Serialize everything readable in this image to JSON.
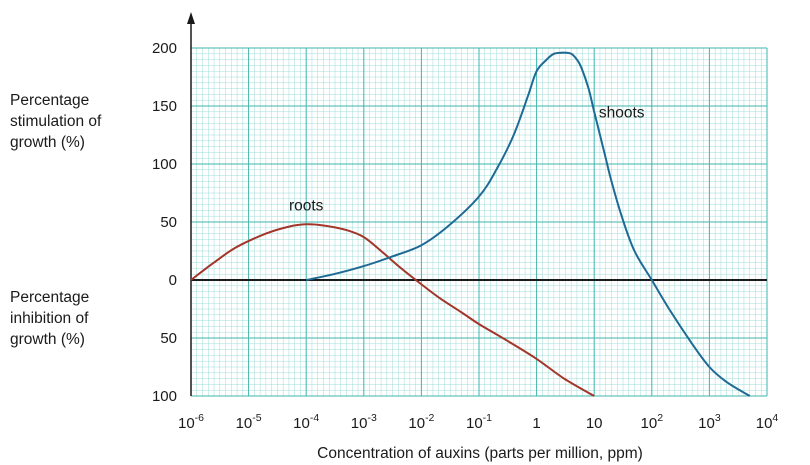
{
  "chart_data": {
    "type": "line",
    "xlabel": "Concentration of auxins (parts per million, ppm)",
    "ylabel_upper": "Percentage\nstimulation of\ngrowth (%)",
    "ylabel_lower": "Percentage\ninhibition of\ngrowth (%)",
    "x_scale": "log",
    "xlim": [
      1e-06,
      10000
    ],
    "x_ticks": [
      {
        "base": "10",
        "exp": "-6"
      },
      {
        "base": "10",
        "exp": "-5"
      },
      {
        "base": "10",
        "exp": "-4"
      },
      {
        "base": "10",
        "exp": "-3"
      },
      {
        "base": "10",
        "exp": "-2"
      },
      {
        "base": "10",
        "exp": "-1"
      },
      {
        "base": "1",
        "exp": ""
      },
      {
        "base": "10",
        "exp": ""
      },
      {
        "base": "10",
        "exp": "2"
      },
      {
        "base": "10",
        "exp": "3"
      },
      {
        "base": "10",
        "exp": "4"
      }
    ],
    "y_ticks": [
      {
        "value": 200,
        "label": "200"
      },
      {
        "value": 150,
        "label": "150"
      },
      {
        "value": 100,
        "label": "100"
      },
      {
        "value": 50,
        "label": "50"
      },
      {
        "value": 0,
        "label": "0"
      },
      {
        "value": -50,
        "label": "50"
      },
      {
        "value": -100,
        "label": "100"
      }
    ],
    "ylim": [
      -100,
      200
    ],
    "grid": true,
    "series": [
      {
        "name": "roots",
        "color": "#a3352a",
        "x": [
          1e-06,
          2.5e-06,
          6e-06,
          2e-05,
          5e-05,
          0.0001,
          0.0002,
          0.0005,
          0.001,
          0.002,
          0.004,
          0.008,
          0.02,
          0.05,
          0.1,
          0.3,
          1,
          3,
          10
        ],
        "y": [
          0,
          15,
          28,
          40,
          46,
          48,
          47,
          43,
          37,
          25,
          12,
          0,
          -15,
          -28,
          -38,
          -52,
          -68,
          -85,
          -100
        ]
      },
      {
        "name": "shoots",
        "color": "#1f6a94",
        "x": [
          0.0001,
          0.0003,
          0.001,
          0.003,
          0.01,
          0.03,
          0.1,
          0.2,
          0.4,
          0.7,
          1,
          1.5,
          2,
          3,
          4,
          5,
          6,
          8,
          10,
          15,
          20,
          30,
          50,
          100,
          200,
          500,
          1000,
          2000,
          5000
        ],
        "y": [
          0,
          5,
          12,
          20,
          30,
          47,
          72,
          95,
          125,
          158,
          180,
          190,
          195,
          196,
          195,
          190,
          183,
          165,
          145,
          110,
          85,
          55,
          25,
          0,
          -25,
          -55,
          -75,
          -88,
          -100
        ]
      }
    ]
  }
}
